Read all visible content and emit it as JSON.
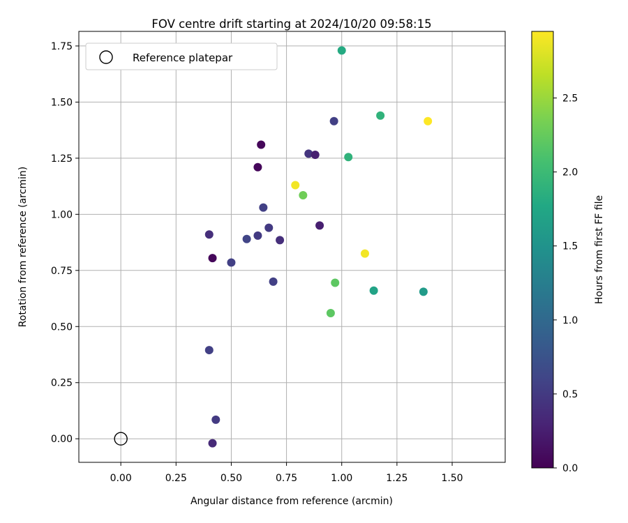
{
  "chart_data": {
    "type": "scatter",
    "title": "FOV centre drift starting at 2024/10/20 09:58:15",
    "xlabel": "Angular distance from reference (arcmin)",
    "ylabel": "Rotation from reference (arcmin)",
    "xlim": [
      -0.19,
      1.74
    ],
    "ylim": [
      -0.105,
      1.815
    ],
    "xticks": [
      "0.00",
      "0.25",
      "0.50",
      "0.75",
      "1.00",
      "1.25",
      "1.50"
    ],
    "yticks": [
      "0.00",
      "0.25",
      "0.50",
      "0.75",
      "1.00",
      "1.25",
      "1.50",
      "1.75"
    ],
    "grid": true,
    "legend": {
      "position": "top-left",
      "label": "Reference platepar"
    },
    "reference": {
      "x": 0.0,
      "y": 0.0
    },
    "colorbar": {
      "label": "Hours from first FF file",
      "colormap": "viridis",
      "range": [
        0.0,
        2.95
      ],
      "ticks": [
        "0.0",
        "0.5",
        "1.0",
        "1.5",
        "2.0",
        "2.5"
      ]
    },
    "points": [
      {
        "x": 0.415,
        "y": -0.02,
        "c": 0.35
      },
      {
        "x": 0.43,
        "y": 0.085,
        "c": 0.5
      },
      {
        "x": 0.4,
        "y": 0.395,
        "c": 0.55
      },
      {
        "x": 0.415,
        "y": 0.805,
        "c": 0.05
      },
      {
        "x": 0.4,
        "y": 0.91,
        "c": 0.4
      },
      {
        "x": 0.5,
        "y": 0.785,
        "c": 0.55
      },
      {
        "x": 0.57,
        "y": 0.89,
        "c": 0.6
      },
      {
        "x": 0.62,
        "y": 0.905,
        "c": 0.5
      },
      {
        "x": 0.67,
        "y": 0.94,
        "c": 0.5
      },
      {
        "x": 0.72,
        "y": 0.885,
        "c": 0.4
      },
      {
        "x": 0.645,
        "y": 1.03,
        "c": 0.55
      },
      {
        "x": 0.69,
        "y": 0.7,
        "c": 0.55
      },
      {
        "x": 0.62,
        "y": 1.21,
        "c": 0.05
      },
      {
        "x": 0.635,
        "y": 1.31,
        "c": 0.05
      },
      {
        "x": 0.85,
        "y": 1.27,
        "c": 0.45
      },
      {
        "x": 0.88,
        "y": 1.265,
        "c": 0.25
      },
      {
        "x": 0.9,
        "y": 0.95,
        "c": 0.25
      },
      {
        "x": 0.965,
        "y": 1.415,
        "c": 0.55
      },
      {
        "x": 0.79,
        "y": 1.13,
        "c": 2.9
      },
      {
        "x": 0.825,
        "y": 1.085,
        "c": 2.3
      },
      {
        "x": 0.95,
        "y": 0.56,
        "c": 2.2
      },
      {
        "x": 0.97,
        "y": 0.695,
        "c": 2.2
      },
      {
        "x": 1.0,
        "y": 1.73,
        "c": 1.8
      },
      {
        "x": 1.03,
        "y": 1.255,
        "c": 1.9
      },
      {
        "x": 1.105,
        "y": 0.825,
        "c": 2.9
      },
      {
        "x": 1.145,
        "y": 0.66,
        "c": 1.7
      },
      {
        "x": 1.175,
        "y": 1.44,
        "c": 1.9
      },
      {
        "x": 1.37,
        "y": 0.655,
        "c": 1.6
      },
      {
        "x": 1.39,
        "y": 1.415,
        "c": 2.95
      }
    ]
  }
}
